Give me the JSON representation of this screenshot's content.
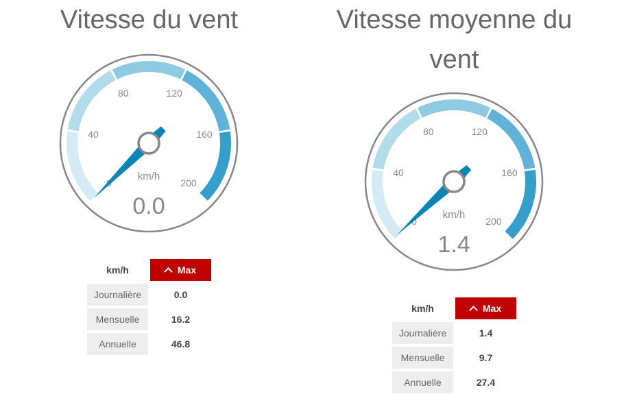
{
  "chart_data": [
    {
      "type": "gauge",
      "title": "Vitesse du vent",
      "unit": "km/h",
      "value": 0.0,
      "value_label": "0.0",
      "range": [
        0,
        200
      ],
      "ticks": [
        "0",
        "40",
        "80",
        "120",
        "160",
        "200"
      ],
      "bands": [
        {
          "from": 0,
          "to": 40,
          "color": "#d4ebf5"
        },
        {
          "from": 40,
          "to": 80,
          "color": "#b0dcec"
        },
        {
          "from": 80,
          "to": 120,
          "color": "#8ecbe3"
        },
        {
          "from": 120,
          "to": 160,
          "color": "#5fb2d8"
        },
        {
          "from": 160,
          "to": 200,
          "color": "#359fcb"
        }
      ],
      "table": {
        "unit": "km/h",
        "header": "Max",
        "rows": [
          {
            "label": "Journalière",
            "value": "0.0"
          },
          {
            "label": "Mensuelle",
            "value": "16.2"
          },
          {
            "label": "Annuelle",
            "value": "46.8"
          }
        ]
      }
    },
    {
      "type": "gauge",
      "title": "Vitesse moyenne du vent",
      "unit": "km/h",
      "value": 1.4,
      "value_label": "1.4",
      "range": [
        0,
        200
      ],
      "ticks": [
        "0",
        "40",
        "80",
        "120",
        "160",
        "200"
      ],
      "bands": [
        {
          "from": 0,
          "to": 40,
          "color": "#d4ebf5"
        },
        {
          "from": 40,
          "to": 80,
          "color": "#b0dcec"
        },
        {
          "from": 80,
          "to": 120,
          "color": "#8ecbe3"
        },
        {
          "from": 120,
          "to": 160,
          "color": "#5fb2d8"
        },
        {
          "from": 160,
          "to": 200,
          "color": "#359fcb"
        }
      ],
      "table": {
        "unit": "km/h",
        "header": "Max",
        "rows": [
          {
            "label": "Journalière",
            "value": "1.4"
          },
          {
            "label": "Mensuelle",
            "value": "9.7"
          },
          {
            "label": "Annuelle",
            "value": "27.4"
          }
        ]
      }
    }
  ],
  "colors": {
    "needle": "#0a85b8",
    "header_bg": "#c00000",
    "ring": "#888888"
  }
}
